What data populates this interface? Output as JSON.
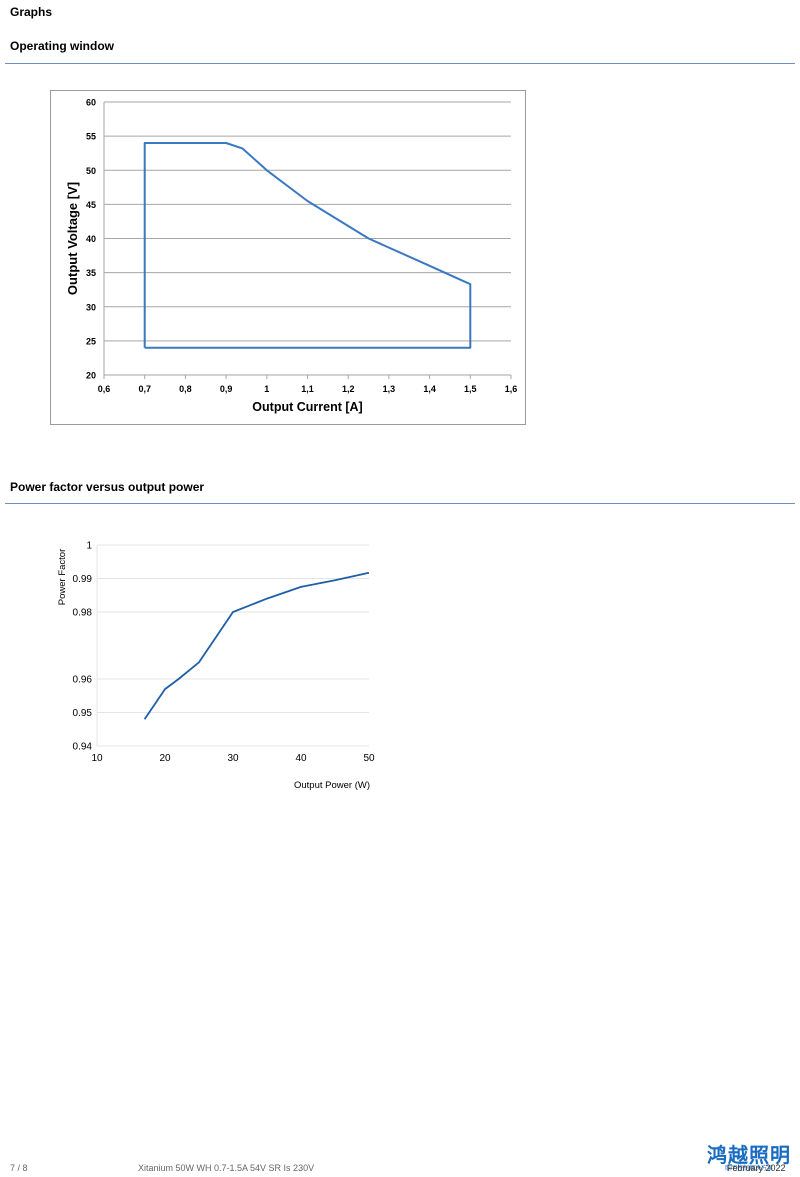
{
  "page": {
    "heading": "Graphs"
  },
  "sections": {
    "operating_window": {
      "title": "Operating window"
    },
    "power_factor": {
      "title": "Power factor versus output power"
    }
  },
  "chart_data": [
    {
      "type": "line",
      "xlabel": "Output  Current  [A]",
      "ylabel": "Output Voltage [V]",
      "xlim": [
        0.6,
        1.6
      ],
      "ylim": [
        20,
        60
      ],
      "x_ticks": [
        "0,6",
        "0,7",
        "0,8",
        "0,9",
        "1",
        "1,1",
        "1,2",
        "1,3",
        "1,4",
        "1,5",
        "1,6"
      ],
      "y_ticks": [
        "20",
        "25",
        "30",
        "35",
        "40",
        "45",
        "50",
        "55",
        "60"
      ],
      "grid": true,
      "line_color": "#3a78c2",
      "series": [
        {
          "x": [
            0.7,
            0.7,
            0.9,
            0.94,
            1.0,
            1.1,
            1.25,
            1.4,
            1.5,
            1.5,
            0.7
          ],
          "y": [
            24,
            54,
            54,
            53.2,
            50,
            45.5,
            40,
            36,
            33.3,
            24,
            24
          ]
        }
      ]
    },
    {
      "type": "line",
      "xlabel": "Output Power (W)",
      "ylabel": "Power Factor",
      "xlim": [
        10,
        50
      ],
      "ylim": [
        0.94,
        1
      ],
      "x_ticks": [
        "10",
        "20",
        "30",
        "40",
        "50"
      ],
      "y_ticks": [
        "0.94",
        "0.95",
        "0.96",
        "0.98",
        "0.99",
        "1"
      ],
      "y_tick_values": [
        0.94,
        0.95,
        0.96,
        0.98,
        0.99,
        1
      ],
      "grid": true,
      "line_color": "#1f5fa8",
      "series": [
        {
          "x": [
            17,
            20,
            22,
            25,
            30,
            35,
            40,
            45,
            48,
            50
          ],
          "y": [
            0.948,
            0.957,
            0.96,
            0.965,
            0.98,
            0.984,
            0.9875,
            0.9895,
            0.9908,
            0.9917
          ]
        }
      ]
    }
  ],
  "footer": {
    "page_number": "7 / 8",
    "product": "Xitanium 50W WH 0.7-1.5A 54V SR Is 230V",
    "date": "February 2022"
  },
  "watermark": {
    "main": "鸿越照明",
    "sub": "照明控制解决方案"
  }
}
